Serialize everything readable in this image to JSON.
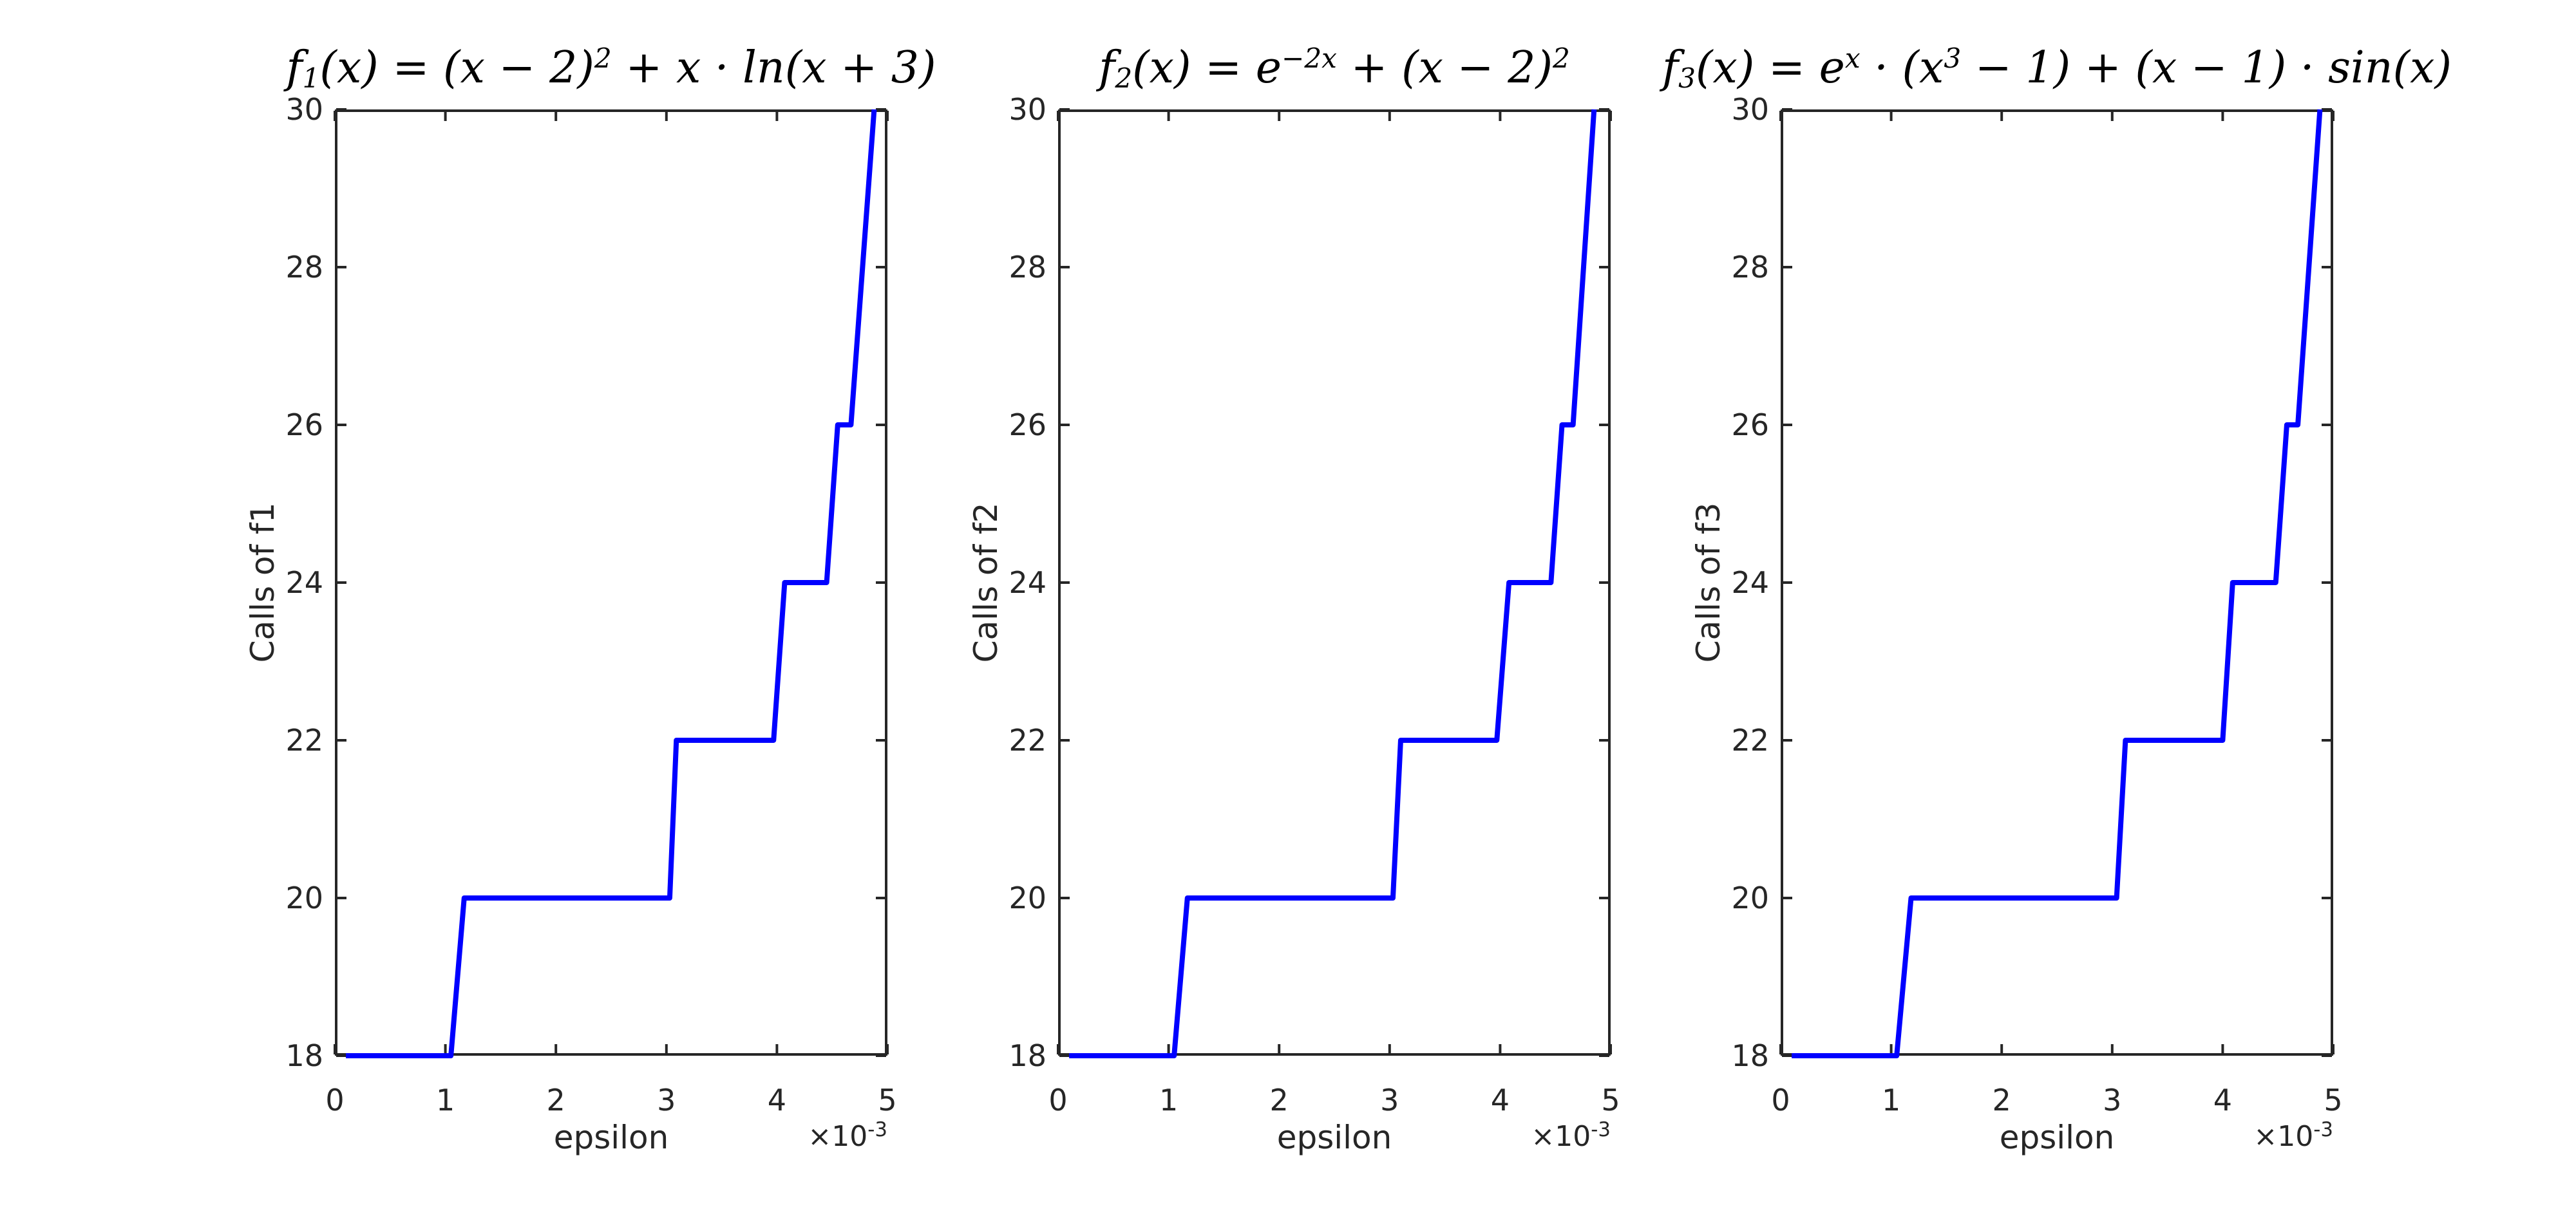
{
  "figure": {
    "background": "#ffffff",
    "axis_color": "#262626",
    "label_color": "#262626",
    "title_color": "#000000",
    "line_color": "#0000ff"
  },
  "chart_data": [
    {
      "type": "line",
      "title_segments": [
        {
          "t": "f"
        },
        {
          "sub": "1"
        },
        {
          "t": "(x) = (x − 2)"
        },
        {
          "sup": "2"
        },
        {
          "t": " + x · ln(x + 3)"
        }
      ],
      "xlabel": "epsilon",
      "ylabel": "Calls of f1",
      "x_exponent": {
        "base": "×10",
        "exp": "-3"
      },
      "x_unit": "1e-3",
      "xlim": [
        0,
        5
      ],
      "ylim": [
        18,
        30
      ],
      "xticks": [
        0,
        1,
        2,
        3,
        4,
        5
      ],
      "yticks": [
        18,
        20,
        22,
        24,
        26,
        28,
        30
      ],
      "grid": false,
      "legend": null,
      "series": [
        {
          "name": "calls of f1",
          "color": "#0000ff",
          "points": [
            [
              0.1,
              18
            ],
            [
              1.05,
              18
            ],
            [
              1.17,
              20
            ],
            [
              3.03,
              20
            ],
            [
              3.09,
              22
            ],
            [
              3.97,
              22
            ],
            [
              4.07,
              24
            ],
            [
              4.45,
              24
            ],
            [
              4.55,
              26
            ],
            [
              4.67,
              26
            ],
            [
              4.88,
              30
            ]
          ]
        }
      ]
    },
    {
      "type": "line",
      "title_segments": [
        {
          "t": "f"
        },
        {
          "sub": "2"
        },
        {
          "t": "(x) = e"
        },
        {
          "sup": "−2x"
        },
        {
          "t": " + (x − 2)"
        },
        {
          "sup": "2"
        }
      ],
      "xlabel": "epsilon",
      "ylabel": "Calls of f2",
      "x_exponent": {
        "base": "×10",
        "exp": "-3"
      },
      "x_unit": "1e-3",
      "xlim": [
        0,
        5
      ],
      "ylim": [
        18,
        30
      ],
      "xticks": [
        0,
        1,
        2,
        3,
        4,
        5
      ],
      "yticks": [
        18,
        20,
        22,
        24,
        26,
        28,
        30
      ],
      "grid": false,
      "legend": null,
      "series": [
        {
          "name": "calls of f2",
          "color": "#0000ff",
          "points": [
            [
              0.1,
              18
            ],
            [
              1.05,
              18
            ],
            [
              1.17,
              20
            ],
            [
              3.03,
              20
            ],
            [
              3.1,
              22
            ],
            [
              3.97,
              22
            ],
            [
              4.08,
              24
            ],
            [
              4.46,
              24
            ],
            [
              4.56,
              26
            ],
            [
              4.66,
              26
            ],
            [
              4.85,
              30
            ]
          ]
        }
      ]
    },
    {
      "type": "line",
      "title_segments": [
        {
          "t": "f"
        },
        {
          "sub": "3"
        },
        {
          "t": "(x) = e"
        },
        {
          "sup": "x"
        },
        {
          "t": " · (x"
        },
        {
          "sup": "3"
        },
        {
          "t": " − 1) + (x − 1) · sin(x)"
        }
      ],
      "xlabel": "epsilon",
      "ylabel": "Calls of f3",
      "x_exponent": {
        "base": "×10",
        "exp": "-3"
      },
      "x_unit": "1e-3",
      "xlim": [
        0,
        5
      ],
      "ylim": [
        18,
        30
      ],
      "xticks": [
        0,
        1,
        2,
        3,
        4,
        5
      ],
      "yticks": [
        18,
        20,
        22,
        24,
        26,
        28,
        30
      ],
      "grid": false,
      "legend": null,
      "series": [
        {
          "name": "calls of f3",
          "color": "#0000ff",
          "points": [
            [
              0.1,
              18
            ],
            [
              1.05,
              18
            ],
            [
              1.18,
              20
            ],
            [
              3.04,
              20
            ],
            [
              3.12,
              22
            ],
            [
              4.0,
              22
            ],
            [
              4.09,
              24
            ],
            [
              4.48,
              24
            ],
            [
              4.58,
              26
            ],
            [
              4.68,
              26
            ],
            [
              4.88,
              30
            ]
          ]
        }
      ]
    }
  ]
}
